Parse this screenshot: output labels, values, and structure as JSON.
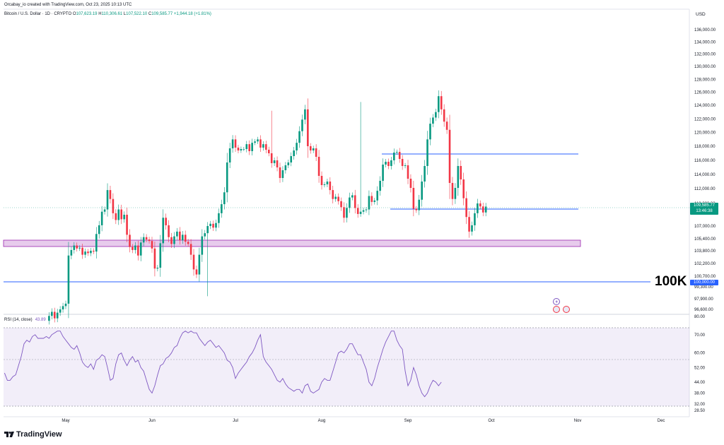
{
  "header": {
    "line1": "Orcabay_io created with TradingView.com, Oct 23, 2025 10:13 UTC",
    "symbol": "Bitcoin / U.S. Dollar · 1D · CRYPTO",
    "o_label": "O",
    "o_value": "107,623.19",
    "h_label": "H",
    "h_value": "110,306.61",
    "l_label": "L",
    "l_value": "107,522.10",
    "c_label": "C",
    "c_value": "109,585.77",
    "change": "+1,944.18 (+1.81%)"
  },
  "currency": "USD",
  "price_tag": {
    "price": "109,585.77",
    "countdown": "13:46:38"
  },
  "level_tag": "100,000.00",
  "annotation_text": "100K",
  "rsi": {
    "label": "RSI (14, close)",
    "value": "43.89"
  },
  "brand": "TradingView",
  "colors": {
    "up": "#089981",
    "down": "#f23645",
    "rsi": "#7e57c2",
    "hline": "#2962ff",
    "zone": "#9c27b0"
  },
  "chart_data": [
    {
      "type": "candlestick",
      "title": "Bitcoin / U.S. Dollar · 1D",
      "ylim": [
        95500,
        137000
      ],
      "y_ticks": [
        "136,000.00",
        "134,000.00",
        "132,000.00",
        "130,000.00",
        "128,000.00",
        "126,000.00",
        "124,000.00",
        "122,000.00",
        "120,000.00",
        "118,000.00",
        "116,000.00",
        "114,000.00",
        "112,000.00",
        "110,000.00",
        "107,000.00",
        "105,400.00",
        "103,800.00",
        "102,200.00",
        "100,700.00",
        "99,300.00",
        "97,900.00",
        "96,600.00"
      ],
      "x_ticks": [
        {
          "label": "May",
          "day": 0
        },
        {
          "label": "Jun",
          "day": 31
        },
        {
          "label": "Jul",
          "day": 61
        },
        {
          "label": "Aug",
          "day": 92
        },
        {
          "label": "Sep",
          "day": 123
        },
        {
          "label": "Oct",
          "day": 153
        },
        {
          "label": "Nov",
          "day": 184
        },
        {
          "label": "Dec",
          "day": 214
        }
      ],
      "x_range_days": [
        -23,
        225
      ],
      "closes": [
        95800,
        96300,
        95500,
        96200,
        96600,
        97000,
        97300,
        103200,
        103900,
        104500,
        104100,
        104200,
        103300,
        103700,
        103500,
        103800,
        103700,
        106000,
        107100,
        108900,
        109200,
        111800,
        110600,
        108700,
        107800,
        109200,
        107900,
        108500,
        105900,
        104300,
        103900,
        104500,
        103200,
        104900,
        105600,
        105300,
        105100,
        104100,
        101600,
        101700,
        104800,
        108100,
        107100,
        105600,
        104700,
        105700,
        106300,
        105200,
        105900,
        105000,
        104700,
        103300,
        101500,
        100900,
        103300,
        105700,
        106100,
        107000,
        107300,
        106800,
        107400,
        108700,
        109900,
        111500,
        115700,
        117700,
        119000,
        117800,
        117400,
        117600,
        117600,
        118300,
        117300,
        118500,
        118700,
        119000,
        117800,
        118300,
        117500,
        117000,
        115600,
        116000,
        115000,
        113500,
        114600,
        115300,
        115700,
        116600,
        117400,
        118500,
        120200,
        121900,
        123400,
        118000,
        117400,
        117700,
        116500,
        113800,
        112500,
        112600,
        113000,
        111800,
        110600,
        110900,
        110300,
        109500,
        108100,
        109400,
        110800,
        111100,
        109400,
        108600,
        108900,
        109100,
        109200,
        111000,
        110200,
        110400,
        111700,
        113100,
        115400,
        115800,
        115200,
        116000,
        117100,
        117200,
        116200,
        115200,
        115300,
        113400,
        112100,
        109300,
        109100,
        110500,
        113000,
        115200,
        119000,
        121300,
        122200,
        123000,
        125400,
        123400,
        121600,
        120400,
        112800,
        110600,
        112100,
        115200,
        113300,
        110700,
        108200,
        106300,
        107100,
        108700,
        110000,
        109600,
        108800,
        109580
      ],
      "open_first": 95200,
      "sample_highs": {
        "peak_oct": 126200,
        "peak_aug": 124500,
        "peak_jul": 123200
      },
      "sample_lows": {
        "jun_wick": 98200,
        "oct_wick": 102000,
        "oct2_wick": 103500
      }
    },
    {
      "type": "line",
      "title": "RSI (14, close)",
      "ylim": [
        28.5,
        80
      ],
      "y_ticks": [
        "80.00",
        "70.00",
        "60.00",
        "52.00",
        "44.00",
        "38.00",
        "32.00",
        "28.50"
      ],
      "band": [
        30,
        70
      ],
      "values": [
        49,
        45,
        45,
        47,
        48,
        53,
        58,
        65,
        67,
        66,
        69,
        70,
        68,
        68,
        68,
        69,
        68,
        70,
        71,
        72,
        72,
        69,
        67,
        65,
        63,
        62,
        64,
        60,
        55,
        53,
        52,
        54,
        51,
        56,
        57,
        59,
        58,
        52,
        45,
        46,
        54,
        59,
        60,
        56,
        53,
        56,
        58,
        55,
        56,
        52,
        50,
        45,
        40,
        38,
        42,
        48,
        53,
        54,
        57,
        58,
        60,
        63,
        64,
        68,
        71,
        72,
        71,
        72,
        71,
        71,
        68,
        66,
        64,
        66,
        67,
        65,
        63,
        64,
        62,
        60,
        56,
        55,
        52,
        46,
        49,
        51,
        53,
        55,
        58,
        60,
        63,
        67,
        70,
        58,
        55,
        53,
        51,
        48,
        45,
        44,
        46,
        43,
        41,
        40,
        39,
        40,
        40,
        38,
        42,
        43,
        39,
        38,
        39,
        40,
        44,
        46,
        45,
        45,
        50,
        55,
        60,
        61,
        60,
        62,
        65,
        65,
        62,
        59,
        59,
        55,
        51,
        44,
        42,
        46,
        52,
        57,
        62,
        66,
        69,
        72,
        72,
        67,
        64,
        62,
        50,
        42,
        45,
        52,
        48,
        42,
        38,
        36,
        38,
        42,
        45,
        44,
        42,
        44
      ],
      "last_value": 43.89
    }
  ]
}
